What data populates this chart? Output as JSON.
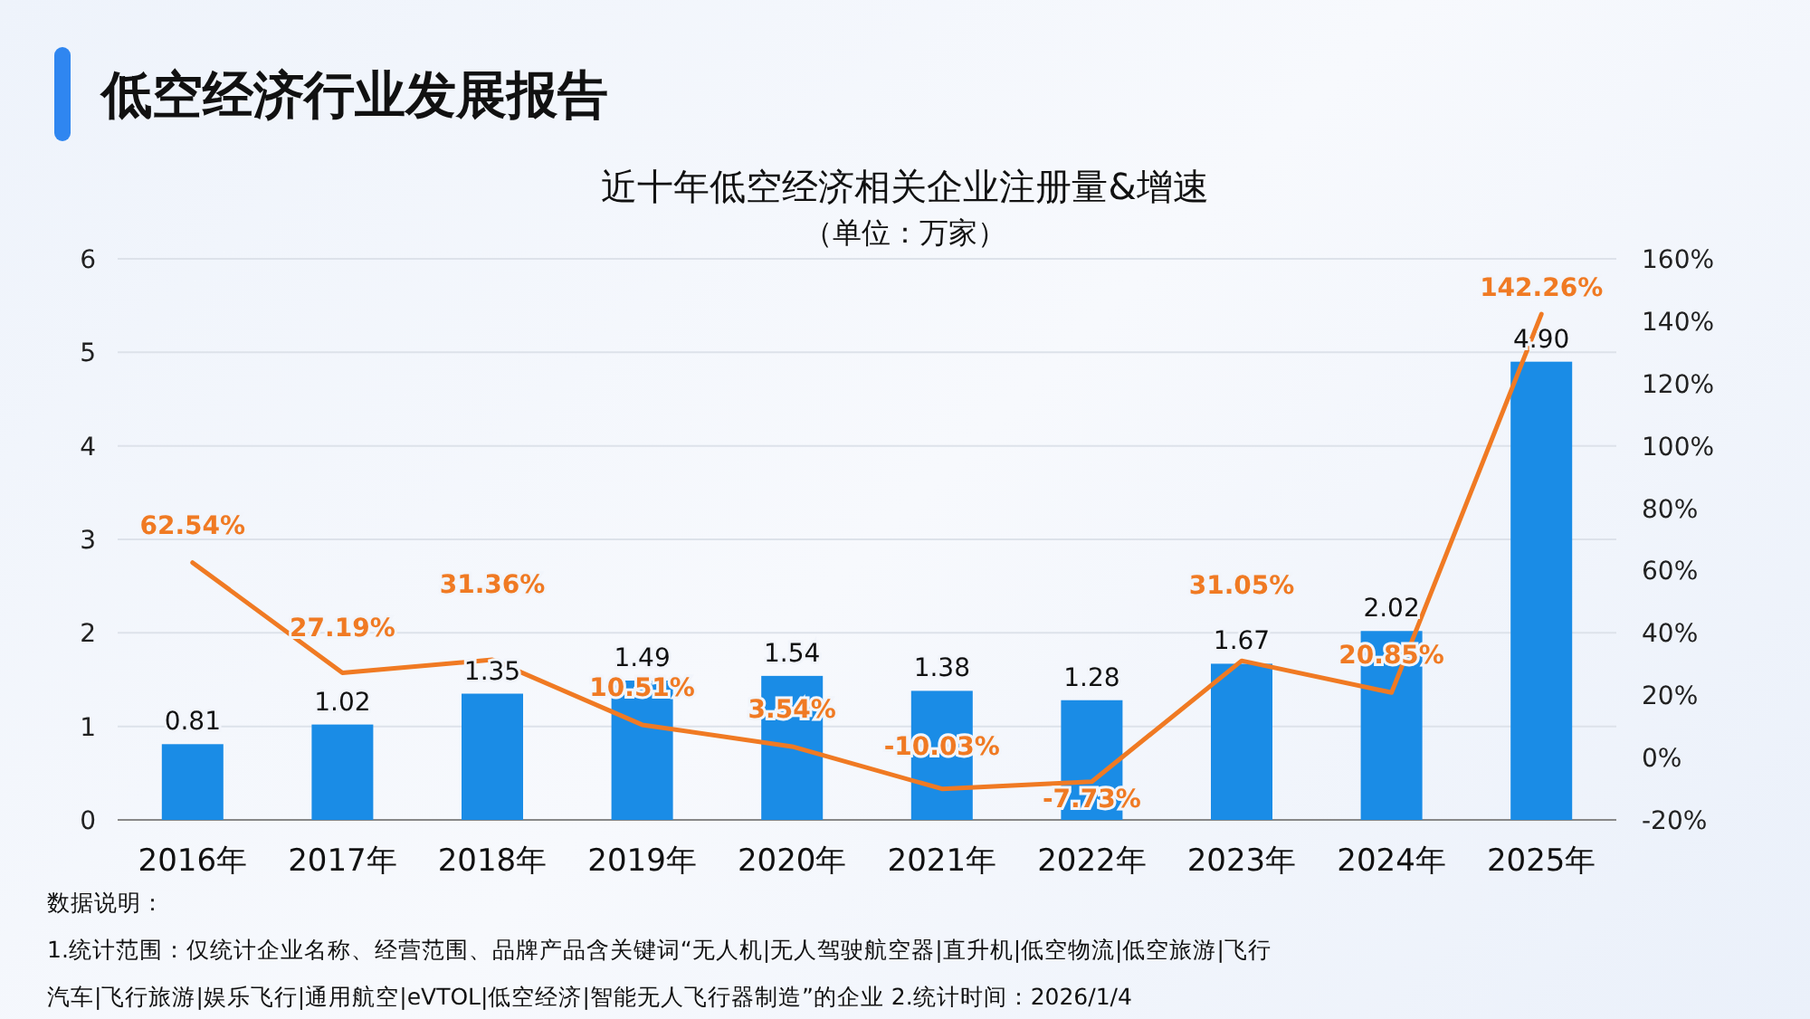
{
  "chart_data": {
    "type": "bar",
    "title": "低空经济行业发展报告",
    "subtitle": "近十年低空经济相关企业注册量&增速",
    "annotations": [
      "（单位：万家）",
      "数据说明：",
      "1.统计范围：仅统计企业名称、经营范围、品牌产品含关键词“无人机|无人驾驶航空器|直升机|低空物流|低空旅游|飞行汽车|飞行旅游|娱乐飞行|通用航空|eVTOL|低空经济|智能无人飞行器制造”的企业 2.统计时间：2026/1/4"
    ],
    "categories": [
      "2016年",
      "2017年",
      "2018年",
      "2019年",
      "2020年",
      "2021年",
      "2022年",
      "2023年",
      "2024年",
      "2025年"
    ],
    "series": [
      {
        "color": "#1a8ce6",
        "values": [
          0.81,
          1.02,
          1.35,
          1.49,
          1.54,
          1.38,
          1.28,
          1.67,
          2.02,
          4.9
        ],
        "value_labels": [
          "0.81",
          "1.02",
          "1.35",
          "1.49",
          "1.54",
          "1.38",
          "1.28",
          "1.67",
          "2.02",
          "4.90"
        ]
      },
      {
        "type": "line",
        "axis": "y2",
        "color": "#f07a23",
        "values": [
          62.54,
          27.19,
          31.36,
          10.51,
          3.54,
          -10.03,
          -7.73,
          31.05,
          20.85,
          142.26
        ],
        "value_labels": [
          "62.54%",
          "27.19%",
          "31.36%",
          "10.51%",
          "3.54%",
          "-10.03%",
          "-7.73%",
          "31.05%",
          "20.85%",
          "142.26%"
        ]
      }
    ],
    "ylim": [
      0,
      6
    ],
    "yticks": [
      0,
      1,
      2,
      3,
      4,
      5,
      6
    ],
    "y2lim": [
      -20,
      160
    ],
    "y2ticks": [
      {
        "value": -20,
        "label": "-20%"
      },
      {
        "value": 0,
        "label": "0%"
      },
      {
        "value": 20,
        "label": "20%"
      },
      {
        "value": 40,
        "label": "40%"
      },
      {
        "value": 60,
        "label": "60%"
      },
      {
        "value": 80,
        "label": "80%"
      },
      {
        "value": 100,
        "label": "100%"
      },
      {
        "value": 120,
        "label": "120%"
      },
      {
        "value": 140,
        "label": "140%"
      },
      {
        "value": 160,
        "label": "160%"
      }
    ],
    "grid": "y",
    "marker": "none"
  }
}
